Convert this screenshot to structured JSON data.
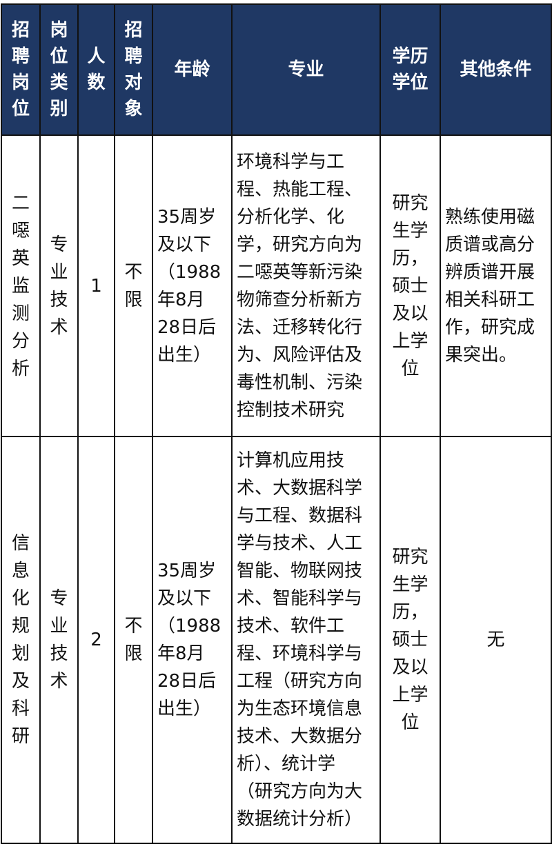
{
  "headers": [
    "招\n聘\n岗\n位",
    "岗\n位\n类\n别",
    "人\n数",
    "招\n聘\n对\n象",
    "年龄",
    "专业",
    "学历\n学位",
    "其他条件"
  ],
  "rows": [
    {
      "position": "二\n噁\n英\n监\n测\n分\n析",
      "category": "专\n业\n技\n术",
      "count": "1",
      "target": "不\n限",
      "age": "35周岁\n及以下\n（1988\n年8月\n28日后\n出生）",
      "major": "环境科学与工\n程、热能工程、\n分析化学、化\n学，研究方向为\n二噁英等新污染\n物筛查分析新方\n法、迁移转化行\n为、风险评估及\n毒性机制、污染\n控制技术研究",
      "education": "研究\n生学\n历，\n硕士\n及以\n上学\n位",
      "other": "熟练使用磁\n质谱或高分\n辨质谱开展\n相关科研工\n作，研究成\n果突出。"
    },
    {
      "position": "信\n息\n化\n规\n划\n及\n科\n研",
      "category": "专\n业\n技\n术",
      "count": "2",
      "target": "不\n限",
      "age": "35周岁\n及以下\n（1988\n年8月\n28日后\n出生）",
      "major": "计算机应用技\n术、大数据科学\n与工程、数据科\n学与技术、人工\n智能、物联网技\n术、智能科学与\n技术、软件工\n程、环境科学与\n工程（研究方向\n为生态环境信息\n技术、大数据分\n析）、统计学\n（研究方向为大\n数据统计分析）",
      "education": "研究\n生学\n历，\n硕士\n及以\n上学\n位",
      "other": "无"
    }
  ]
}
